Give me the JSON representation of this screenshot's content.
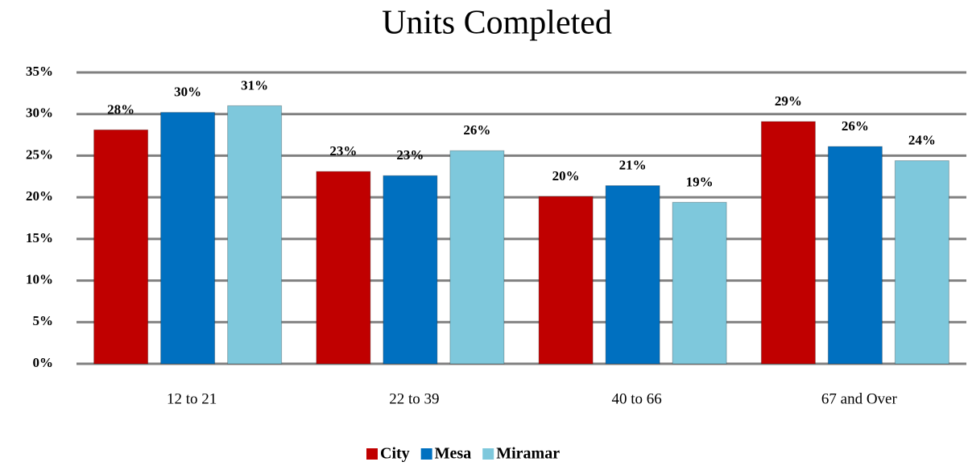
{
  "chart_data": {
    "type": "bar",
    "title": "Units Completed",
    "categories": [
      "12 to 21",
      "22 to 39",
      "40 to 66",
      "67 and Over"
    ],
    "series": [
      {
        "name": "City",
        "color": "#c00000",
        "values": [
          28.1,
          23.1,
          20.1,
          29.1
        ],
        "value_labels": [
          "28%",
          "23%",
          "20%",
          "29%"
        ]
      },
      {
        "name": "Mesa",
        "color": "#0070c0",
        "values": [
          30.2,
          22.6,
          21.4,
          26.1
        ],
        "value_labels": [
          "30%",
          "23%",
          "21%",
          "26%"
        ]
      },
      {
        "name": "Miramar",
        "color": "#7ec8dc",
        "values": [
          31.0,
          25.6,
          19.4,
          24.4
        ],
        "value_labels": [
          "31%",
          "26%",
          "19%",
          "24%"
        ]
      }
    ],
    "ylim": [
      0,
      35
    ],
    "yticks": [
      {
        "value": 0,
        "label": "0%"
      },
      {
        "value": 5,
        "label": "5%"
      },
      {
        "value": 10,
        "label": "10%"
      },
      {
        "value": 15,
        "label": "15%"
      },
      {
        "value": 20,
        "label": "20%"
      },
      {
        "value": 25,
        "label": "25%"
      },
      {
        "value": 30,
        "label": "30%"
      },
      {
        "value": 35,
        "label": "35%"
      }
    ],
    "grid": true,
    "legend": "bottom"
  }
}
